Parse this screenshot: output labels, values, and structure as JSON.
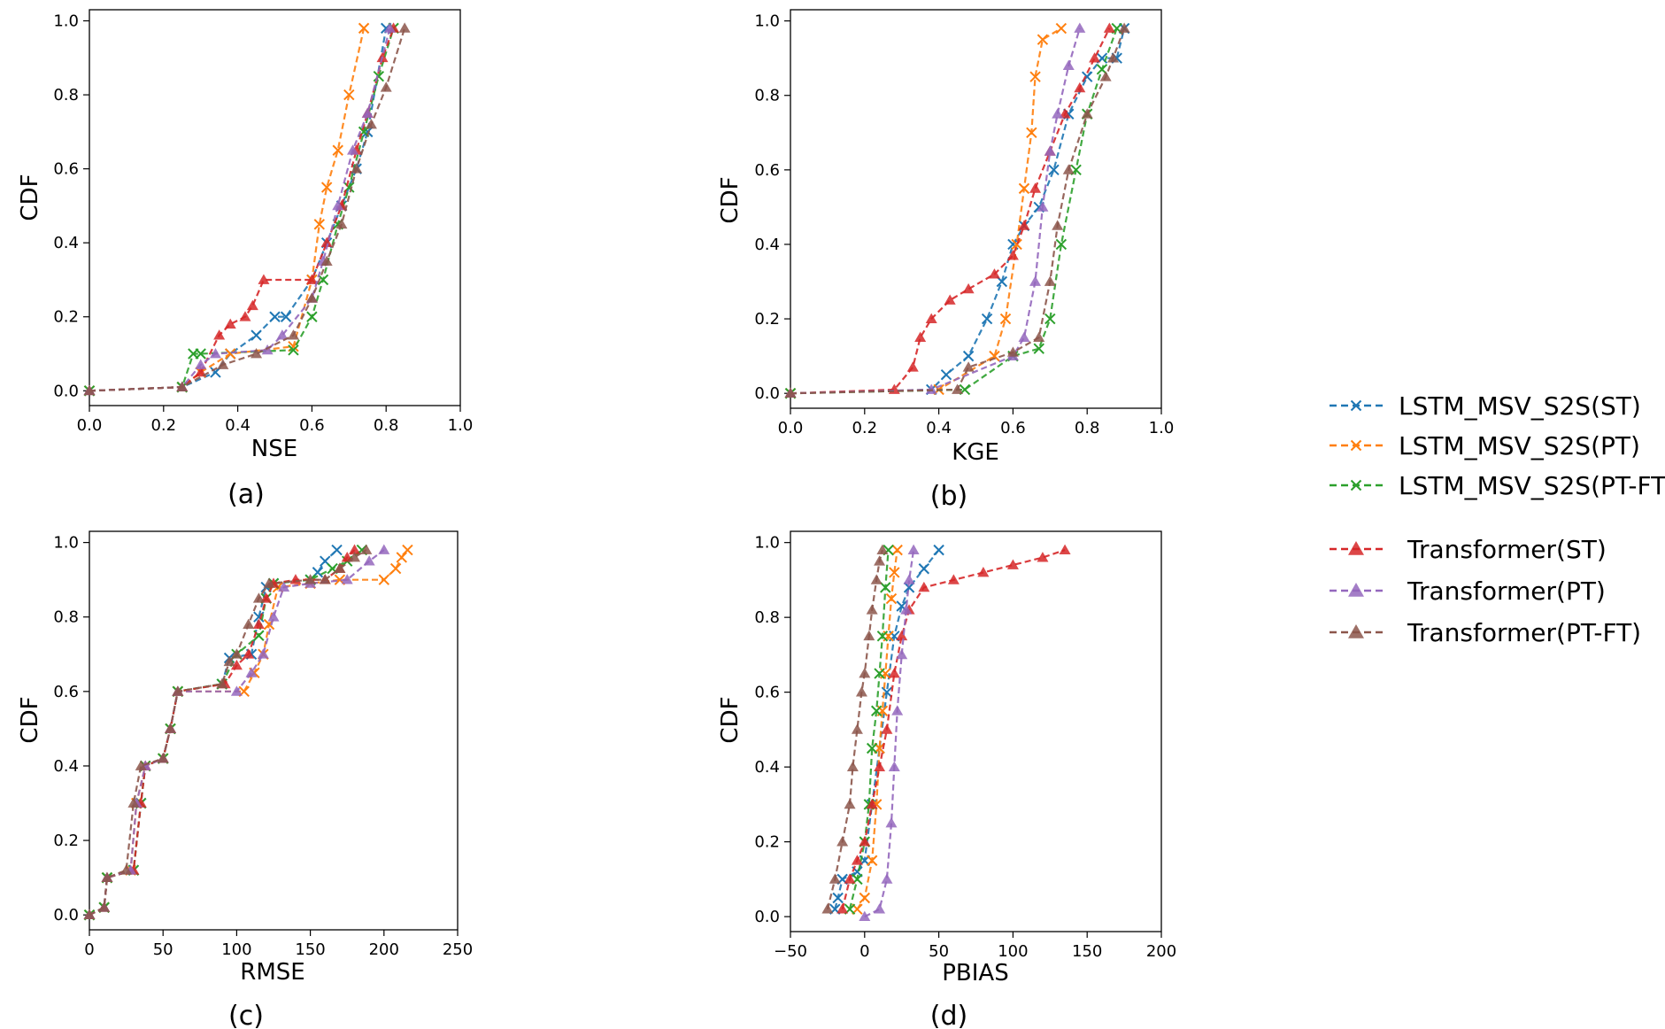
{
  "colors": {
    "LSTM_MSV_S2S(ST)": "#1f77b4",
    "LSTM_MSV_S2S(PT)": "#ff7f0e",
    "LSTM_MSV_S2S(PT-FT)": "#2ca02c",
    "Transformer(ST)": "#d62728",
    "Transformer(PT)": "#9467bd",
    "Transformer(PT-FT)": "#8c564b"
  },
  "legend": {
    "placement": "right",
    "entries": [
      {
        "label": "LSTM_MSV_S2S(ST)",
        "color": "#1f77b4",
        "marker": "x"
      },
      {
        "label": "LSTM_MSV_S2S(PT)",
        "color": "#ff7f0e",
        "marker": "x"
      },
      {
        "label": "LSTM_MSV_S2S(PT-FT)",
        "color": "#2ca02c",
        "marker": "x"
      },
      {
        "label": "Transformer(ST)",
        "color": "#d62728",
        "marker": "triangle"
      },
      {
        "label": "Transformer(PT)",
        "color": "#9467bd",
        "marker": "triangle"
      },
      {
        "label": "Transformer(PT-FT)",
        "color": "#8c564b",
        "marker": "triangle"
      }
    ]
  },
  "chart_data": [
    {
      "type": "line",
      "panel": "(a)",
      "xlabel": "NSE",
      "ylabel": "CDF",
      "xlim": [
        0,
        1
      ],
      "ylim": [
        -0.04,
        1.03
      ],
      "xticks": [
        "0.0",
        "0.2",
        "0.4",
        "0.6",
        "0.8",
        "1.0"
      ],
      "yticks": [
        "0.0",
        "0.2",
        "0.4",
        "0.6",
        "0.8",
        "1.0"
      ],
      "grid": false,
      "series": [
        {
          "name": "LSTM_MSV_S2S(ST)",
          "x": [
            0,
            0.25,
            0.34,
            0.38,
            0.45,
            0.5,
            0.53,
            0.6,
            0.64,
            0.68,
            0.72,
            0.75,
            0.8
          ],
          "y": [
            0,
            0.01,
            0.05,
            0.1,
            0.15,
            0.2,
            0.2,
            0.3,
            0.4,
            0.5,
            0.6,
            0.7,
            0.98
          ]
        },
        {
          "name": "LSTM_MSV_S2S(PT)",
          "x": [
            0,
            0.25,
            0.3,
            0.38,
            0.55,
            0.6,
            0.62,
            0.64,
            0.67,
            0.7,
            0.74
          ],
          "y": [
            0,
            0.01,
            0.05,
            0.1,
            0.12,
            0.3,
            0.45,
            0.55,
            0.65,
            0.8,
            0.98
          ]
        },
        {
          "name": "LSTM_MSV_S2S(PT-FT)",
          "x": [
            0,
            0.25,
            0.28,
            0.3,
            0.55,
            0.6,
            0.63,
            0.67,
            0.7,
            0.74,
            0.78,
            0.82
          ],
          "y": [
            0,
            0.01,
            0.1,
            0.1,
            0.11,
            0.2,
            0.3,
            0.45,
            0.55,
            0.7,
            0.85,
            0.98
          ]
        },
        {
          "name": "Transformer(ST)",
          "x": [
            0,
            0.25,
            0.3,
            0.35,
            0.38,
            0.42,
            0.44,
            0.47,
            0.6,
            0.64,
            0.68,
            0.72,
            0.75,
            0.79,
            0.82
          ],
          "y": [
            0,
            0.01,
            0.05,
            0.15,
            0.18,
            0.2,
            0.23,
            0.3,
            0.3,
            0.4,
            0.5,
            0.65,
            0.75,
            0.9,
            0.98
          ]
        },
        {
          "name": "Transformer(PT)",
          "x": [
            0,
            0.25,
            0.3,
            0.34,
            0.48,
            0.52,
            0.6,
            0.63,
            0.67,
            0.71,
            0.75,
            0.81
          ],
          "y": [
            0,
            0.01,
            0.07,
            0.1,
            0.11,
            0.15,
            0.25,
            0.35,
            0.5,
            0.65,
            0.75,
            0.98
          ]
        },
        {
          "name": "Transformer(PT-FT)",
          "x": [
            0,
            0.25,
            0.36,
            0.45,
            0.55,
            0.6,
            0.64,
            0.68,
            0.72,
            0.76,
            0.8,
            0.85
          ],
          "y": [
            0,
            0.01,
            0.07,
            0.1,
            0.15,
            0.25,
            0.35,
            0.45,
            0.6,
            0.72,
            0.82,
            0.98
          ]
        }
      ]
    },
    {
      "type": "line",
      "panel": "(b)",
      "xlabel": "KGE",
      "ylabel": "CDF",
      "xlim": [
        0,
        1
      ],
      "ylim": [
        -0.04,
        1.03
      ],
      "xticks": [
        "0.0",
        "0.2",
        "0.4",
        "0.6",
        "0.8",
        "1.0"
      ],
      "yticks": [
        "0.0",
        "0.2",
        "0.4",
        "0.6",
        "0.8",
        "1.0"
      ],
      "grid": false,
      "series": [
        {
          "name": "LSTM_MSV_S2S(ST)",
          "x": [
            0,
            0.38,
            0.42,
            0.48,
            0.53,
            0.57,
            0.6,
            0.63,
            0.67,
            0.71,
            0.75,
            0.8,
            0.84,
            0.88,
            0.9
          ],
          "y": [
            0,
            0.01,
            0.05,
            0.1,
            0.2,
            0.3,
            0.4,
            0.45,
            0.5,
            0.6,
            0.75,
            0.85,
            0.9,
            0.9,
            0.98
          ]
        },
        {
          "name": "LSTM_MSV_S2S(PT)",
          "x": [
            0,
            0.4,
            0.55,
            0.58,
            0.61,
            0.63,
            0.65,
            0.66,
            0.68,
            0.73
          ],
          "y": [
            0,
            0.01,
            0.1,
            0.2,
            0.4,
            0.55,
            0.7,
            0.85,
            0.95,
            0.98
          ]
        },
        {
          "name": "LSTM_MSV_S2S(PT-FT)",
          "x": [
            0,
            0.47,
            0.6,
            0.67,
            0.7,
            0.73,
            0.77,
            0.8,
            0.84,
            0.88
          ],
          "y": [
            0,
            0.01,
            0.1,
            0.12,
            0.2,
            0.4,
            0.6,
            0.75,
            0.87,
            0.98
          ]
        },
        {
          "name": "Transformer(ST)",
          "x": [
            0,
            0.28,
            0.33,
            0.35,
            0.38,
            0.43,
            0.48,
            0.55,
            0.6,
            0.63,
            0.66,
            0.7,
            0.74,
            0.78,
            0.82,
            0.86
          ],
          "y": [
            0,
            0.01,
            0.07,
            0.15,
            0.2,
            0.25,
            0.28,
            0.32,
            0.37,
            0.45,
            0.55,
            0.65,
            0.75,
            0.82,
            0.9,
            0.98
          ]
        },
        {
          "name": "Transformer(PT)",
          "x": [
            0,
            0.38,
            0.6,
            0.63,
            0.66,
            0.68,
            0.7,
            0.72,
            0.75,
            0.78
          ],
          "y": [
            0,
            0.01,
            0.1,
            0.15,
            0.3,
            0.5,
            0.65,
            0.75,
            0.88,
            0.98
          ]
        },
        {
          "name": "Transformer(PT-FT)",
          "x": [
            0,
            0.45,
            0.48,
            0.6,
            0.67,
            0.7,
            0.72,
            0.75,
            0.8,
            0.85,
            0.87,
            0.9
          ],
          "y": [
            0,
            0.01,
            0.07,
            0.11,
            0.15,
            0.3,
            0.45,
            0.6,
            0.75,
            0.85,
            0.9,
            0.98
          ]
        }
      ]
    },
    {
      "type": "line",
      "panel": "(c)",
      "xlabel": "RMSE",
      "ylabel": "CDF",
      "xlim": [
        0,
        250
      ],
      "ylim": [
        -0.04,
        1.03
      ],
      "xticks": [
        "0",
        "50",
        "100",
        "150",
        "200",
        "250"
      ],
      "yticks": [
        "0.0",
        "0.2",
        "0.4",
        "0.6",
        "0.8",
        "1.0"
      ],
      "grid": false,
      "series": [
        {
          "name": "LSTM_MSV_S2S(ST)",
          "x": [
            0,
            10,
            12,
            30,
            35,
            38,
            50,
            55,
            60,
            90,
            95,
            110,
            115,
            120,
            125,
            150,
            155,
            160,
            168
          ],
          "y": [
            0,
            0.02,
            0.1,
            0.12,
            0.3,
            0.4,
            0.42,
            0.5,
            0.6,
            0.62,
            0.69,
            0.7,
            0.8,
            0.88,
            0.89,
            0.9,
            0.92,
            0.95,
            0.98
          ]
        },
        {
          "name": "LSTM_MSV_S2S(PT)",
          "x": [
            0,
            10,
            12,
            28,
            32,
            38,
            50,
            55,
            60,
            105,
            112,
            118,
            122,
            128,
            150,
            170,
            200,
            208,
            212,
            216
          ],
          "y": [
            0,
            0.02,
            0.1,
            0.12,
            0.3,
            0.4,
            0.42,
            0.5,
            0.6,
            0.6,
            0.65,
            0.7,
            0.78,
            0.88,
            0.89,
            0.9,
            0.9,
            0.93,
            0.96,
            0.98
          ]
        },
        {
          "name": "LSTM_MSV_S2S(PT-FT)",
          "x": [
            0,
            10,
            12,
            30,
            35,
            38,
            50,
            55,
            60,
            90,
            100,
            115,
            120,
            125,
            150,
            165,
            175,
            185
          ],
          "y": [
            0,
            0.02,
            0.1,
            0.12,
            0.3,
            0.4,
            0.42,
            0.5,
            0.6,
            0.62,
            0.7,
            0.75,
            0.85,
            0.89,
            0.9,
            0.93,
            0.95,
            0.98
          ]
        },
        {
          "name": "Transformer(ST)",
          "x": [
            0,
            10,
            12,
            30,
            35,
            38,
            50,
            55,
            60,
            92,
            100,
            108,
            115,
            120,
            125,
            140,
            160,
            170,
            175,
            180
          ],
          "y": [
            0,
            0.02,
            0.1,
            0.12,
            0.3,
            0.4,
            0.42,
            0.5,
            0.6,
            0.62,
            0.67,
            0.7,
            0.78,
            0.85,
            0.89,
            0.9,
            0.9,
            0.93,
            0.96,
            0.98
          ]
        },
        {
          "name": "Transformer(PT)",
          "x": [
            0,
            10,
            12,
            28,
            32,
            38,
            50,
            55,
            60,
            100,
            110,
            118,
            125,
            132,
            150,
            175,
            190,
            200
          ],
          "y": [
            0,
            0.02,
            0.1,
            0.12,
            0.3,
            0.4,
            0.42,
            0.5,
            0.6,
            0.6,
            0.65,
            0.7,
            0.8,
            0.88,
            0.89,
            0.9,
            0.95,
            0.98
          ]
        },
        {
          "name": "Transformer(PT-FT)",
          "x": [
            0,
            10,
            12,
            25,
            30,
            35,
            50,
            55,
            60,
            90,
            95,
            100,
            108,
            115,
            122,
            150,
            160,
            170,
            180,
            188
          ],
          "y": [
            0,
            0.02,
            0.1,
            0.12,
            0.3,
            0.4,
            0.42,
            0.5,
            0.6,
            0.62,
            0.68,
            0.7,
            0.78,
            0.85,
            0.89,
            0.9,
            0.9,
            0.93,
            0.96,
            0.98
          ]
        }
      ]
    },
    {
      "type": "line",
      "panel": "(d)",
      "xlabel": "PBIAS",
      "ylabel": "CDF",
      "xlim": [
        -50,
        200
      ],
      "ylim": [
        -0.04,
        1.03
      ],
      "xticks": [
        "−50",
        "0",
        "50",
        "100",
        "150",
        "200"
      ],
      "yticks": [
        "0.0",
        "0.2",
        "0.4",
        "0.6",
        "0.8",
        "1.0"
      ],
      "grid": false,
      "series": [
        {
          "name": "LSTM_MSV_S2S(ST)",
          "x": [
            -20,
            -18,
            -15,
            -5,
            0,
            5,
            10,
            15,
            20,
            25,
            30,
            40,
            50
          ],
          "y": [
            0.02,
            0.05,
            0.1,
            0.12,
            0.15,
            0.3,
            0.45,
            0.6,
            0.75,
            0.83,
            0.88,
            0.93,
            0.98
          ]
        },
        {
          "name": "LSTM_MSV_S2S(PT)",
          "x": [
            -5,
            0,
            5,
            8,
            10,
            12,
            14,
            16,
            18,
            20,
            22
          ],
          "y": [
            0.02,
            0.05,
            0.15,
            0.3,
            0.45,
            0.55,
            0.65,
            0.75,
            0.85,
            0.92,
            0.98
          ]
        },
        {
          "name": "LSTM_MSV_S2S(PT-FT)",
          "x": [
            -10,
            -5,
            0,
            3,
            5,
            8,
            10,
            12,
            14,
            16
          ],
          "y": [
            0.02,
            0.1,
            0.2,
            0.3,
            0.45,
            0.55,
            0.65,
            0.75,
            0.88,
            0.98
          ]
        },
        {
          "name": "Transformer(ST)",
          "x": [
            -15,
            -10,
            -5,
            0,
            5,
            10,
            15,
            20,
            25,
            30,
            40,
            60,
            80,
            100,
            120,
            135
          ],
          "y": [
            0.02,
            0.1,
            0.15,
            0.2,
            0.3,
            0.4,
            0.5,
            0.65,
            0.75,
            0.82,
            0.88,
            0.9,
            0.92,
            0.94,
            0.96,
            0.98
          ]
        },
        {
          "name": "Transformer(PT)",
          "x": [
            0,
            10,
            15,
            18,
            20,
            22,
            25,
            28,
            30,
            33
          ],
          "y": [
            0,
            0.02,
            0.1,
            0.25,
            0.4,
            0.55,
            0.7,
            0.82,
            0.9,
            0.98
          ]
        },
        {
          "name": "Transformer(PT-FT)",
          "x": [
            -25,
            -20,
            -15,
            -10,
            -8,
            -5,
            -2,
            0,
            3,
            5,
            8,
            10,
            12
          ],
          "y": [
            0.02,
            0.1,
            0.2,
            0.3,
            0.4,
            0.5,
            0.6,
            0.65,
            0.75,
            0.82,
            0.9,
            0.95,
            0.98
          ]
        }
      ]
    }
  ]
}
